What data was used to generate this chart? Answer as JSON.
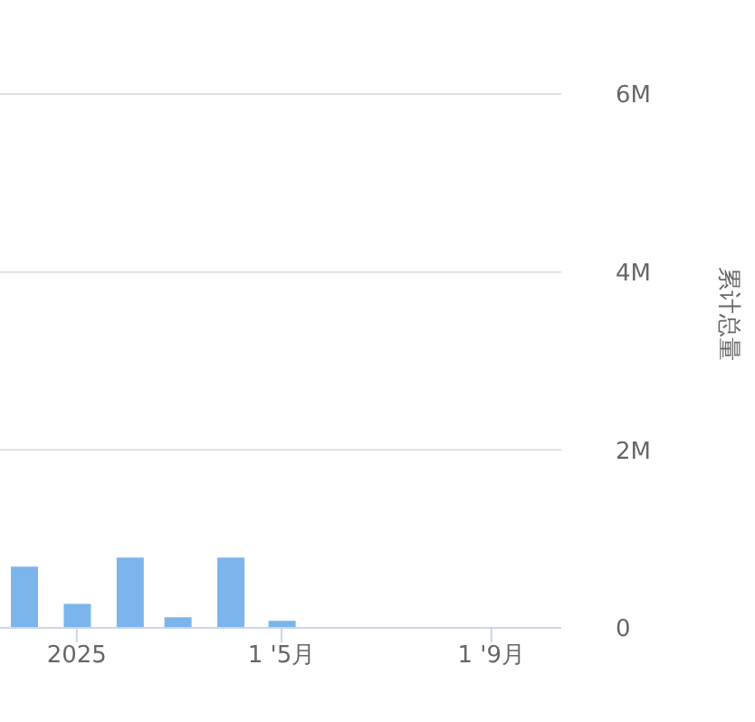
{
  "chart_data": {
    "type": "bar",
    "x": [
      "2024-12",
      "2025-01",
      "2025-02",
      "2025-03",
      "2025-04",
      "2025-05"
    ],
    "series": [
      {
        "axis": "y2",
        "color": "#7cb5ec",
        "values": [
          690000,
          270000,
          790000,
          120000,
          790000,
          80000
        ]
      }
    ],
    "xlim": [
      "2024-11-17",
      "2025-10-12"
    ],
    "xticks": [
      {
        "value": "2025-01",
        "label": "2025"
      },
      {
        "value": "2025-05",
        "label": "1 '5月"
      },
      {
        "value": "2025-09",
        "label": "1 '9月"
      }
    ],
    "y2label": "累计总量",
    "y2lim": [
      0,
      6000000
    ],
    "y2ticks": [
      {
        "value": 0,
        "label": "0"
      },
      {
        "value": 2000000,
        "label": "2M"
      },
      {
        "value": 4000000,
        "label": "4M"
      },
      {
        "value": 6000000,
        "label": "6M"
      }
    ],
    "grid": "y2"
  }
}
